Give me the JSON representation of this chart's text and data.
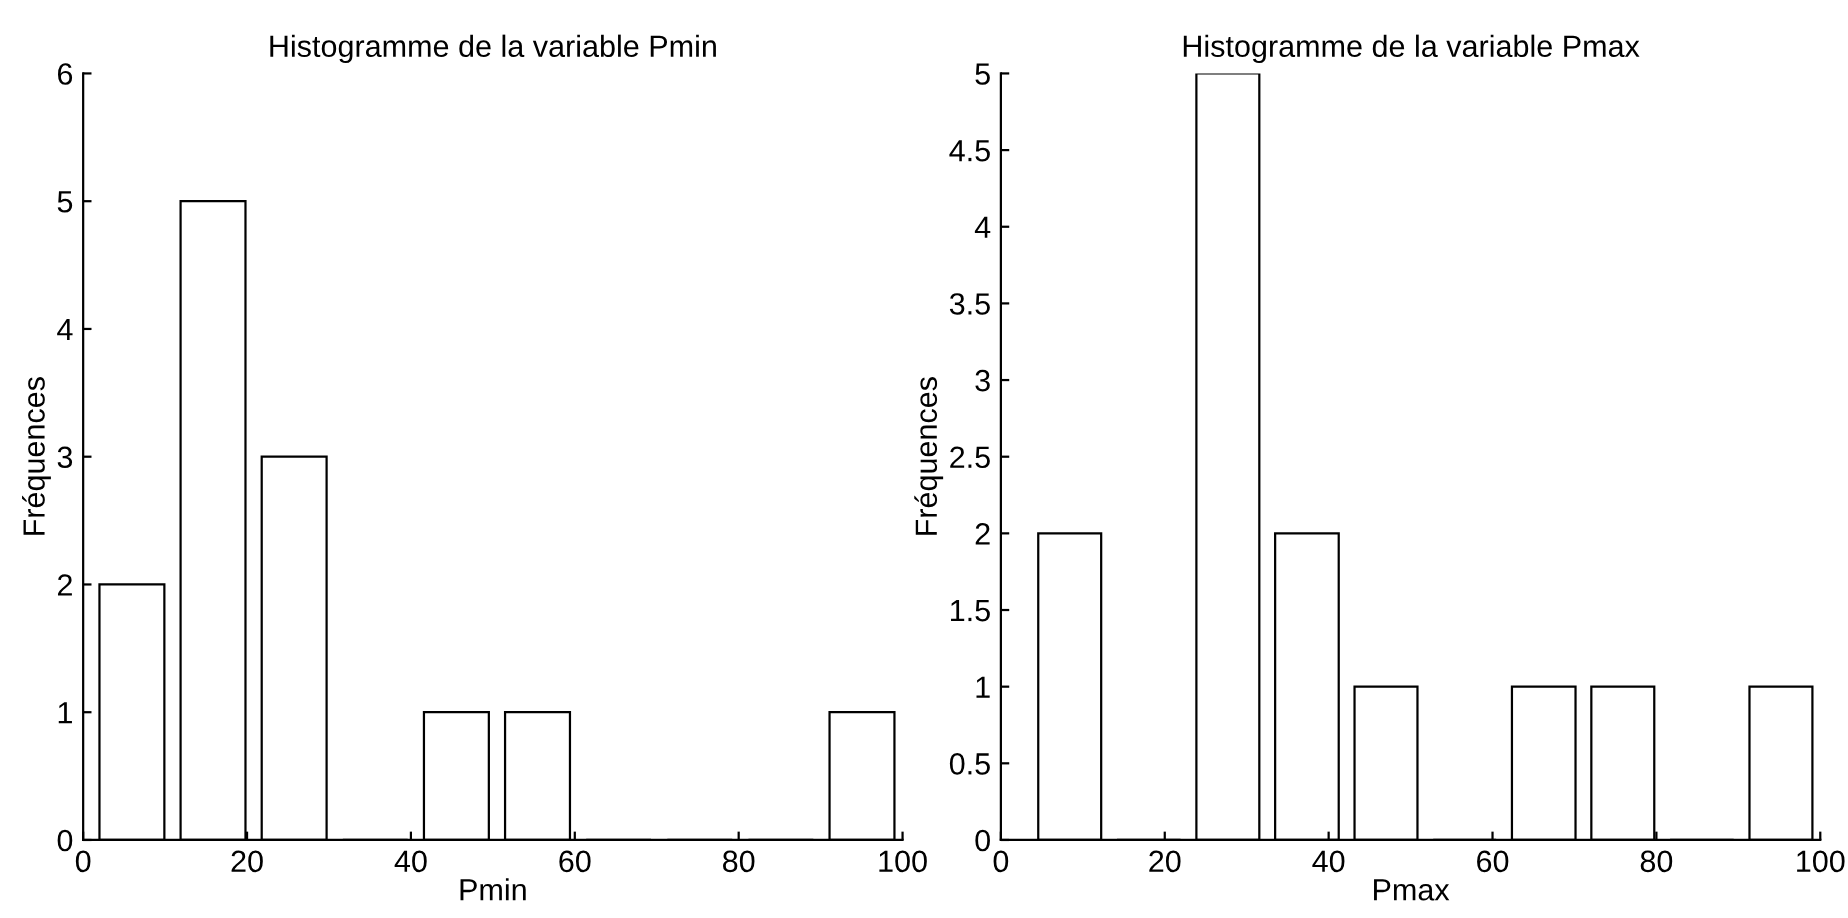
{
  "chart_data": [
    {
      "type": "histogram",
      "title": "Histogramme de la variable Pmin",
      "xlabel": "Pmin",
      "ylabel": "Fréquences",
      "bins": [
        1,
        10.9,
        20.8,
        30.7,
        40.6,
        50.5,
        60.4,
        70.3,
        80.2,
        90.1,
        100
      ],
      "values": [
        2,
        5,
        3,
        0,
        1,
        1,
        0,
        0,
        0,
        1
      ],
      "color": "#ffffff",
      "xlim": [
        0,
        100
      ],
      "xticks": [
        0,
        20,
        40,
        60,
        80,
        100
      ],
      "ylim": [
        0,
        6
      ],
      "yticks": [
        0,
        1,
        2,
        3,
        4,
        5,
        6
      ],
      "grid": false
    },
    {
      "type": "histogram",
      "title": "Histogramme de la variable Pmax",
      "xlabel": "Pmax",
      "ylabel": "Fréquences",
      "bins": [
        3.6,
        13.2,
        22.9,
        32.5,
        42.2,
        51.8,
        61.4,
        71.1,
        80.7,
        90.4,
        100
      ],
      "values": [
        2,
        0,
        5,
        2,
        1,
        0,
        1,
        1,
        0,
        1
      ],
      "color": "#ffffff",
      "xlim": [
        0,
        100
      ],
      "xticks": [
        0,
        20,
        40,
        60,
        80,
        100
      ],
      "ylim": [
        0,
        5
      ],
      "yticks": [
        0,
        0.5,
        1,
        1.5,
        2,
        2.5,
        3,
        3.5,
        4,
        4.5,
        5
      ],
      "grid": false
    }
  ]
}
